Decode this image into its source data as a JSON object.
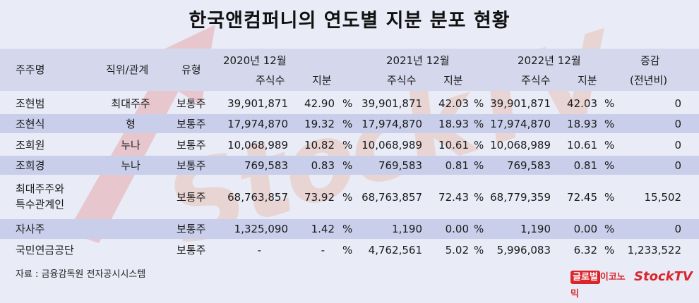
{
  "title": "한국앤컴퍼니의 연도별 지분 분포 현황",
  "header": {
    "holder": "주주명",
    "relation": "직위/관계",
    "type": "유형",
    "year2020": "2020년 12월",
    "year2021": "2021년 12월",
    "year2022": "2022년 12월",
    "shares": "주식수",
    "stake": "지분",
    "change_line1": "증감",
    "change_line2": "(전년비)"
  },
  "rows": [
    {
      "name": "조현범",
      "relation": "최대주주",
      "type": "보통주",
      "s2020": "39,901,871",
      "p2020": "42.90",
      "s2021": "39,901,871",
      "p2021": "42.03",
      "s2022": "39,901,871",
      "p2022": "42.03",
      "change": "0"
    },
    {
      "name": "조현식",
      "relation": "형",
      "type": "보통주",
      "s2020": "17,974,870",
      "p2020": "19.32",
      "s2021": "17,974,870",
      "p2021": "18.93",
      "s2022": "17,974,870",
      "p2022": "18.93",
      "change": "0"
    },
    {
      "name": "조희원",
      "relation": "누나",
      "type": "보통주",
      "s2020": "10,068,989",
      "p2020": "10.82",
      "s2021": "10,068,989",
      "p2021": "10.61",
      "s2022": "10,068,989",
      "p2022": "10.61",
      "change": "0"
    },
    {
      "name": "조희경",
      "relation": "누나",
      "type": "보통주",
      "s2020": "769,583",
      "p2020": "0.83",
      "s2021": "769,583",
      "p2021": "0.81",
      "s2022": "769,583",
      "p2022": "0.81",
      "change": "0"
    },
    {
      "name_line1": "최대주주와",
      "name_line2": "특수관계인",
      "relation": "",
      "type": "보통주",
      "s2020": "68,763,857",
      "p2020": "73.92",
      "s2021": "68,763,857",
      "p2021": "72.43",
      "s2022": "68,779,359",
      "p2022": "72.45",
      "change": "15,502"
    },
    {
      "name": "자사주",
      "relation": "",
      "type": "보통주",
      "s2020": "1,325,090",
      "p2020": "1.42",
      "s2021": "1,190",
      "p2021": "0.00",
      "s2022": "1,190",
      "p2022": "0.00",
      "change": "0"
    },
    {
      "name": "국민연금공단",
      "relation": "",
      "type": "보통주",
      "s2020": "-",
      "p2020": "-",
      "s2021": "4,762,561",
      "p2021": "5.02",
      "s2022": "5,996,083",
      "p2022": "6.32",
      "change": "1,233,522"
    }
  ],
  "percent_sign": "%",
  "source": "자료 : 금융감독원 전자공시시스템",
  "logo_global": "글로벌",
  "logo_economy": "이코노믹",
  "logo_stocktv": "StockTV",
  "watermark": "StockTV"
}
